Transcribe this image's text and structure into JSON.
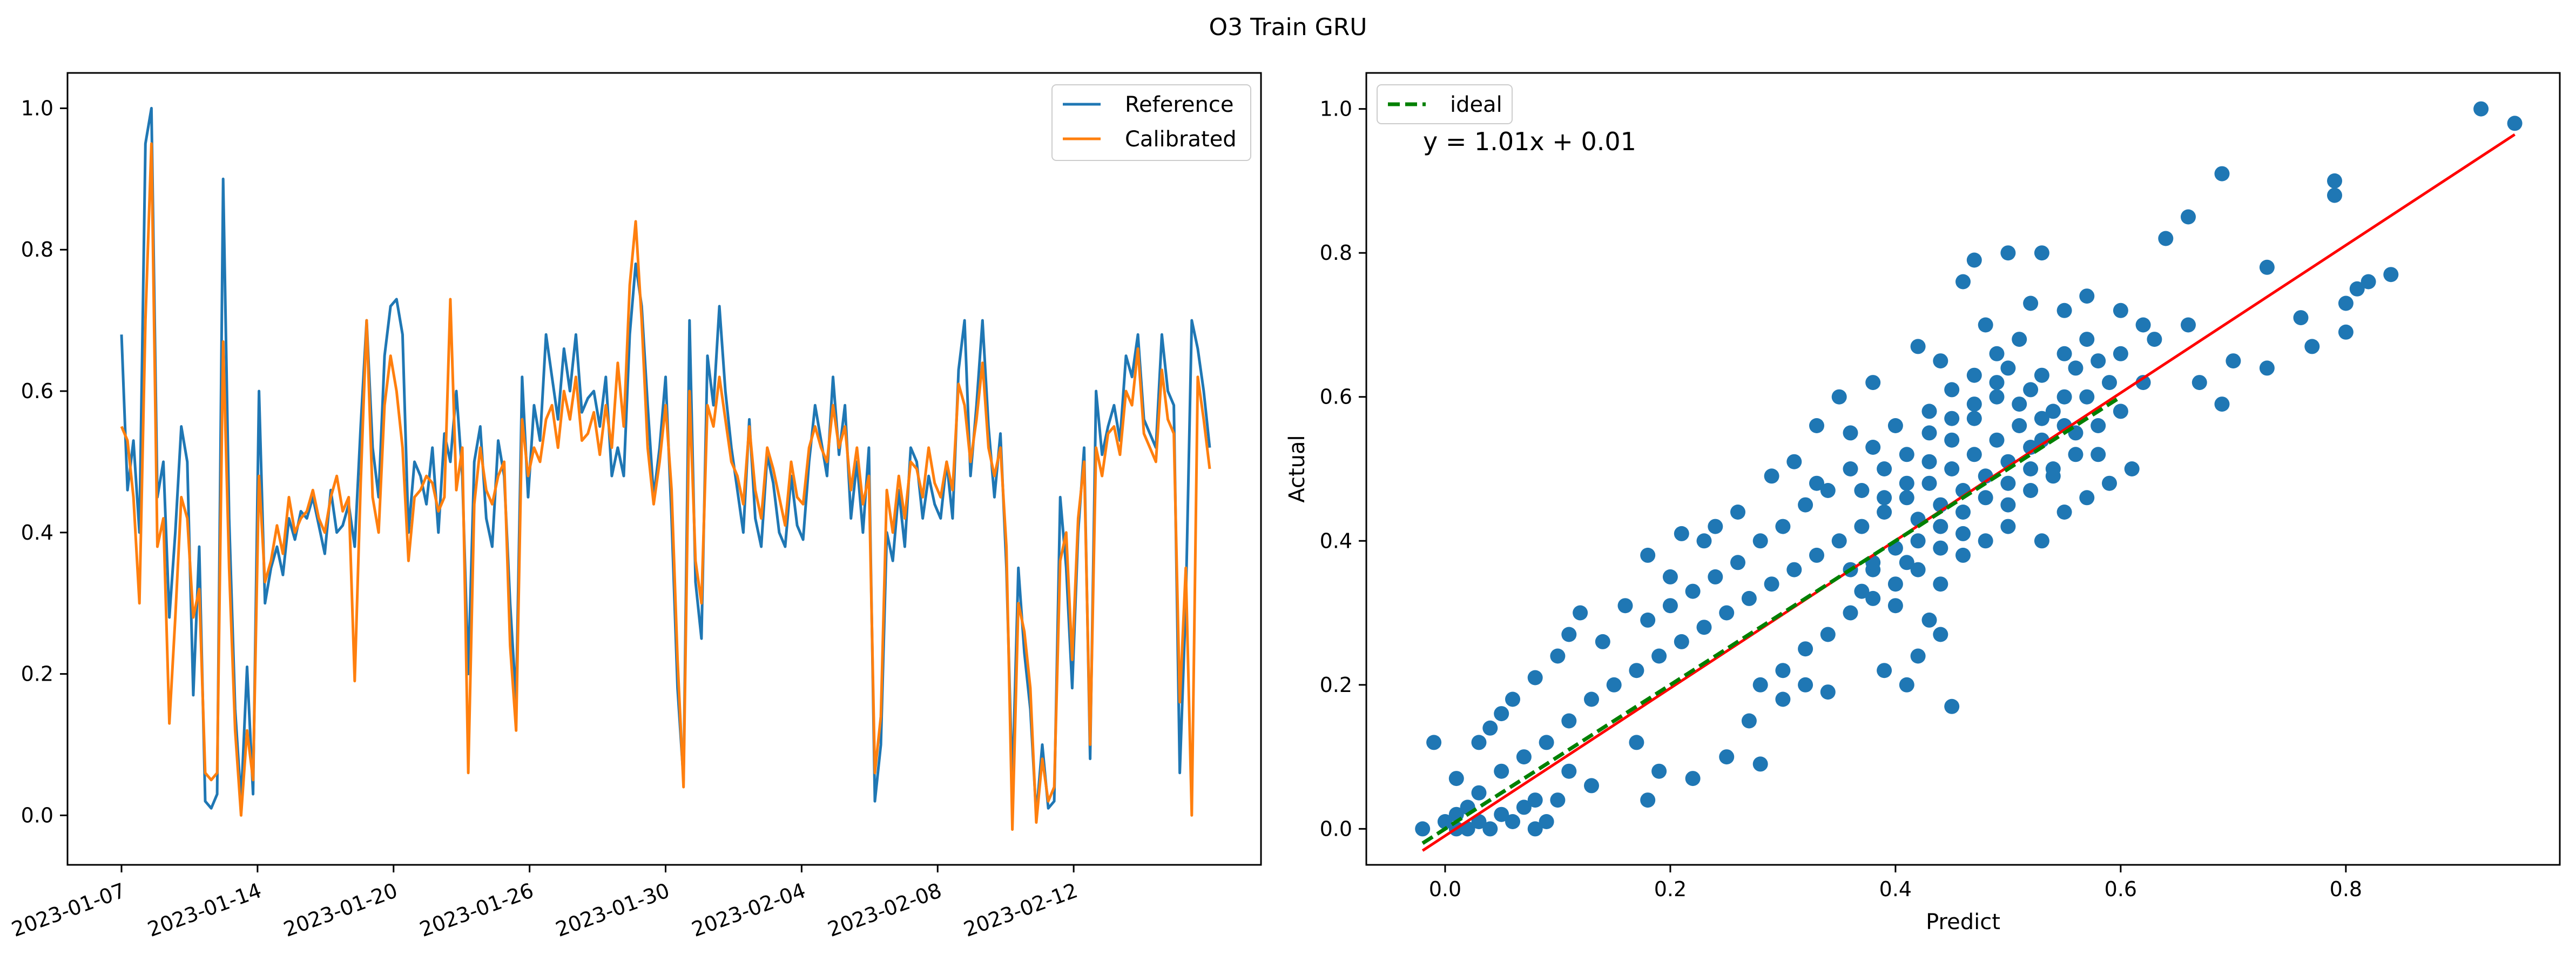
{
  "figure": {
    "title": "O3 Train GRU"
  },
  "chart_data": [
    {
      "type": "line",
      "xlabel": "",
      "ylabel": "",
      "ylim": [
        -0.07,
        1.05
      ],
      "x_tick_labels": [
        "2023-01-07",
        "2023-01-14",
        "2023-01-20",
        "2023-01-26",
        "2023-01-30",
        "2023-02-04",
        "2023-02-08",
        "2023-02-12"
      ],
      "x_tick_rotation_deg": -20,
      "y_ticks": [
        0.0,
        0.2,
        0.4,
        0.6,
        0.8,
        1.0
      ],
      "y_tick_labels": [
        "0.0",
        "0.2",
        "0.4",
        "0.6",
        "0.8",
        "1.0"
      ],
      "legend_position": "top-right",
      "grid": false,
      "colors": {
        "Reference": "#1f77b4",
        "Calibrated": "#ff7f0e"
      },
      "series": [
        {
          "name": "Reference",
          "values": [
            0.68,
            0.46,
            0.53,
            0.4,
            0.95,
            1.0,
            0.45,
            0.5,
            0.28,
            0.4,
            0.55,
            0.5,
            0.17,
            0.38,
            0.02,
            0.01,
            0.03,
            0.9,
            0.42,
            0.15,
            0.02,
            0.21,
            0.03,
            0.6,
            0.3,
            0.35,
            0.38,
            0.34,
            0.42,
            0.39,
            0.43,
            0.42,
            0.45,
            0.41,
            0.37,
            0.46,
            0.4,
            0.41,
            0.44,
            0.38,
            0.55,
            0.7,
            0.52,
            0.45,
            0.65,
            0.72,
            0.73,
            0.68,
            0.4,
            0.5,
            0.48,
            0.44,
            0.52,
            0.4,
            0.54,
            0.5,
            0.6,
            0.48,
            0.2,
            0.5,
            0.55,
            0.42,
            0.38,
            0.53,
            0.48,
            0.3,
            0.16,
            0.62,
            0.45,
            0.58,
            0.53,
            0.68,
            0.62,
            0.56,
            0.66,
            0.6,
            0.68,
            0.57,
            0.59,
            0.6,
            0.55,
            0.62,
            0.48,
            0.52,
            0.48,
            0.68,
            0.78,
            0.72,
            0.58,
            0.45,
            0.52,
            0.62,
            0.42,
            0.18,
            0.05,
            0.7,
            0.33,
            0.25,
            0.65,
            0.58,
            0.72,
            0.6,
            0.52,
            0.46,
            0.4,
            0.56,
            0.42,
            0.38,
            0.51,
            0.47,
            0.4,
            0.38,
            0.48,
            0.41,
            0.39,
            0.5,
            0.58,
            0.53,
            0.48,
            0.62,
            0.51,
            0.58,
            0.42,
            0.5,
            0.4,
            0.52,
            0.02,
            0.1,
            0.4,
            0.36,
            0.46,
            0.38,
            0.52,
            0.5,
            0.42,
            0.48,
            0.44,
            0.42,
            0.5,
            0.42,
            0.63,
            0.7,
            0.48,
            0.58,
            0.7,
            0.55,
            0.45,
            0.54,
            0.35,
            0.04,
            0.35,
            0.23,
            0.15,
            0.0,
            0.1,
            0.01,
            0.02,
            0.45,
            0.35,
            0.18,
            0.4,
            0.52,
            0.08,
            0.6,
            0.51,
            0.55,
            0.58,
            0.53,
            0.65,
            0.62,
            0.68,
            0.56,
            0.54,
            0.52,
            0.68,
            0.6,
            0.58,
            0.06,
            0.3,
            0.7,
            0.66,
            0.6,
            0.52
          ]
        },
        {
          "name": "Calibrated",
          "values": [
            0.55,
            0.53,
            0.45,
            0.3,
            0.7,
            0.95,
            0.38,
            0.42,
            0.13,
            0.28,
            0.45,
            0.42,
            0.28,
            0.32,
            0.06,
            0.05,
            0.06,
            0.67,
            0.35,
            0.12,
            0.0,
            0.12,
            0.05,
            0.48,
            0.33,
            0.36,
            0.41,
            0.37,
            0.45,
            0.4,
            0.42,
            0.43,
            0.46,
            0.42,
            0.4,
            0.45,
            0.48,
            0.43,
            0.45,
            0.19,
            0.47,
            0.7,
            0.45,
            0.4,
            0.58,
            0.65,
            0.6,
            0.52,
            0.36,
            0.45,
            0.46,
            0.48,
            0.47,
            0.43,
            0.45,
            0.73,
            0.46,
            0.52,
            0.06,
            0.44,
            0.52,
            0.46,
            0.44,
            0.48,
            0.5,
            0.24,
            0.12,
            0.56,
            0.48,
            0.52,
            0.5,
            0.56,
            0.58,
            0.52,
            0.6,
            0.56,
            0.62,
            0.53,
            0.54,
            0.57,
            0.51,
            0.58,
            0.52,
            0.64,
            0.55,
            0.75,
            0.84,
            0.7,
            0.52,
            0.44,
            0.5,
            0.58,
            0.46,
            0.22,
            0.04,
            0.6,
            0.36,
            0.3,
            0.58,
            0.55,
            0.62,
            0.56,
            0.5,
            0.48,
            0.44,
            0.55,
            0.46,
            0.42,
            0.52,
            0.49,
            0.45,
            0.41,
            0.5,
            0.45,
            0.44,
            0.52,
            0.55,
            0.52,
            0.5,
            0.58,
            0.52,
            0.55,
            0.46,
            0.52,
            0.44,
            0.48,
            0.06,
            0.14,
            0.46,
            0.4,
            0.48,
            0.42,
            0.5,
            0.49,
            0.45,
            0.52,
            0.47,
            0.45,
            0.5,
            0.46,
            0.61,
            0.58,
            0.5,
            0.56,
            0.64,
            0.52,
            0.48,
            0.52,
            0.38,
            -0.02,
            0.3,
            0.26,
            0.18,
            -0.01,
            0.08,
            0.02,
            0.04,
            0.36,
            0.4,
            0.22,
            0.42,
            0.5,
            0.1,
            0.52,
            0.48,
            0.54,
            0.55,
            0.51,
            0.6,
            0.58,
            0.66,
            0.54,
            0.52,
            0.5,
            0.63,
            0.56,
            0.54,
            0.16,
            0.35,
            0.0,
            0.62,
            0.56,
            0.49
          ]
        }
      ]
    },
    {
      "type": "scatter",
      "xlabel": "Predict",
      "ylabel": "Actual",
      "xlim": [
        -0.07,
        0.99
      ],
      "ylim": [
        -0.05,
        1.05
      ],
      "x_ticks": [
        0.0,
        0.2,
        0.4,
        0.6,
        0.8
      ],
      "x_tick_labels": [
        "0.0",
        "0.2",
        "0.4",
        "0.6",
        "0.8"
      ],
      "y_ticks": [
        0.0,
        0.2,
        0.4,
        0.6,
        0.8,
        1.0
      ],
      "y_tick_labels": [
        "0.0",
        "0.2",
        "0.4",
        "0.6",
        "0.8",
        "1.0"
      ],
      "legend_position": "top-left",
      "grid": false,
      "annotation": "y = 1.01x + 0.01",
      "colors": {
        "points": "#1f77b4",
        "fit": "#ff0000",
        "ideal": "#008000"
      },
      "fit_line": {
        "slope": 1.01,
        "intercept": 0.01,
        "x_range": [
          -0.02,
          0.95
        ]
      },
      "ideal_line": {
        "name": "ideal",
        "x_range": [
          -0.02,
          0.6
        ]
      },
      "points": [
        [
          0.92,
          1.0
        ],
        [
          0.95,
          0.98
        ],
        [
          0.69,
          0.91
        ],
        [
          0.79,
          0.9
        ],
        [
          0.79,
          0.88
        ],
        [
          0.5,
          0.8
        ],
        [
          0.47,
          0.79
        ],
        [
          0.53,
          0.8
        ],
        [
          0.66,
          0.85
        ],
        [
          0.64,
          0.82
        ],
        [
          0.84,
          0.77
        ],
        [
          0.82,
          0.76
        ],
        [
          0.81,
          0.75
        ],
        [
          0.8,
          0.73
        ],
        [
          0.76,
          0.71
        ],
        [
          0.73,
          0.78
        ],
        [
          0.8,
          0.69
        ],
        [
          0.77,
          0.67
        ],
        [
          0.7,
          0.65
        ],
        [
          0.66,
          0.7
        ],
        [
          0.63,
          0.68
        ],
        [
          0.62,
          0.62
        ],
        [
          0.67,
          0.62
        ],
        [
          0.69,
          0.59
        ],
        [
          0.73,
          0.64
        ],
        [
          0.6,
          0.72
        ],
        [
          0.57,
          0.74
        ],
        [
          0.55,
          0.72
        ],
        [
          0.52,
          0.73
        ],
        [
          0.46,
          0.76
        ],
        [
          0.48,
          0.7
        ],
        [
          0.42,
          0.67
        ],
        [
          0.44,
          0.65
        ],
        [
          0.38,
          0.62
        ],
        [
          0.35,
          0.6
        ],
        [
          0.36,
          0.55
        ],
        [
          0.33,
          0.56
        ],
        [
          0.31,
          0.51
        ],
        [
          0.29,
          0.49
        ],
        [
          0.33,
          0.48
        ],
        [
          0.26,
          0.44
        ],
        [
          0.24,
          0.42
        ],
        [
          0.23,
          0.4
        ],
        [
          0.21,
          0.41
        ],
        [
          0.18,
          0.38
        ],
        [
          0.2,
          0.35
        ],
        [
          0.16,
          0.31
        ],
        [
          0.12,
          0.3
        ],
        [
          0.11,
          0.27
        ],
        [
          0.14,
          0.26
        ],
        [
          0.1,
          0.24
        ],
        [
          0.08,
          0.21
        ],
        [
          0.06,
          0.18
        ],
        [
          0.05,
          0.16
        ],
        [
          0.04,
          0.14
        ],
        [
          0.03,
          0.12
        ],
        [
          -0.01,
          0.12
        ],
        [
          0.01,
          0.07
        ],
        [
          0.1,
          0.04
        ],
        [
          0.08,
          0.04
        ],
        [
          0.28,
          0.09
        ],
        [
          0.22,
          0.07
        ],
        [
          0.18,
          0.04
        ],
        [
          0.19,
          0.08
        ],
        [
          0.17,
          0.12
        ],
        [
          0.25,
          0.1
        ],
        [
          0.27,
          0.15
        ],
        [
          0.3,
          0.18
        ],
        [
          0.32,
          0.2
        ],
        [
          0.34,
          0.19
        ],
        [
          0.39,
          0.22
        ],
        [
          0.41,
          0.2
        ],
        [
          0.42,
          0.24
        ],
        [
          0.44,
          0.27
        ],
        [
          0.45,
          0.17
        ],
        [
          0.43,
          0.29
        ],
        [
          0.4,
          0.31
        ],
        [
          0.37,
          0.33
        ],
        [
          0.38,
          0.36
        ],
        [
          0.41,
          0.37
        ],
        [
          0.44,
          0.34
        ],
        [
          0.46,
          0.38
        ],
        [
          0.48,
          0.4
        ],
        [
          0.5,
          0.42
        ],
        [
          0.53,
          0.4
        ],
        [
          0.55,
          0.44
        ],
        [
          0.57,
          0.46
        ],
        [
          0.59,
          0.48
        ],
        [
          0.61,
          0.5
        ],
        [
          0.58,
          0.52
        ],
        [
          0.56,
          0.55
        ],
        [
          0.54,
          0.58
        ],
        [
          0.52,
          0.61
        ],
        [
          0.5,
          0.64
        ],
        [
          0.49,
          0.6
        ],
        [
          0.47,
          0.57
        ],
        [
          0.45,
          0.54
        ],
        [
          0.43,
          0.51
        ],
        [
          0.41,
          0.48
        ],
        [
          0.39,
          0.46
        ],
        [
          0.42,
          0.43
        ],
        [
          0.44,
          0.45
        ],
        [
          0.46,
          0.47
        ],
        [
          0.48,
          0.49
        ],
        [
          0.5,
          0.51
        ],
        [
          0.52,
          0.53
        ],
        [
          0.54,
          0.5
        ],
        [
          0.56,
          0.52
        ],
        [
          0.58,
          0.56
        ],
        [
          0.6,
          0.58
        ],
        [
          0.51,
          0.56
        ],
        [
          0.49,
          0.54
        ],
        [
          0.47,
          0.52
        ],
        [
          0.45,
          0.5
        ],
        [
          0.43,
          0.48
        ],
        [
          0.41,
          0.46
        ],
        [
          0.39,
          0.44
        ],
        [
          0.37,
          0.42
        ],
        [
          0.35,
          0.4
        ],
        [
          0.33,
          0.38
        ],
        [
          0.31,
          0.36
        ],
        [
          0.29,
          0.34
        ],
        [
          0.27,
          0.32
        ],
        [
          0.25,
          0.3
        ],
        [
          0.23,
          0.28
        ],
        [
          0.21,
          0.26
        ],
        [
          0.19,
          0.24
        ],
        [
          0.17,
          0.22
        ],
        [
          0.15,
          0.2
        ],
        [
          0.13,
          0.18
        ],
        [
          0.11,
          0.15
        ],
        [
          0.09,
          0.12
        ],
        [
          0.07,
          0.1
        ],
        [
          0.05,
          0.08
        ],
        [
          0.03,
          0.05
        ],
        [
          0.02,
          0.03
        ],
        [
          0.01,
          0.02
        ],
        [
          0.0,
          0.01
        ],
        [
          -0.02,
          0.0
        ],
        [
          0.04,
          0.0
        ],
        [
          0.06,
          0.01
        ],
        [
          0.08,
          0.0
        ],
        [
          0.05,
          0.02
        ],
        [
          0.07,
          0.03
        ],
        [
          0.02,
          0.0
        ],
        [
          0.03,
          0.01
        ],
        [
          0.01,
          0.0
        ],
        [
          0.09,
          0.01
        ],
        [
          0.11,
          0.08
        ],
        [
          0.13,
          0.06
        ],
        [
          0.53,
          0.63
        ],
        [
          0.55,
          0.66
        ],
        [
          0.57,
          0.68
        ],
        [
          0.51,
          0.68
        ],
        [
          0.49,
          0.66
        ],
        [
          0.47,
          0.63
        ],
        [
          0.45,
          0.61
        ],
        [
          0.43,
          0.58
        ],
        [
          0.4,
          0.56
        ],
        [
          0.38,
          0.53
        ],
        [
          0.36,
          0.5
        ],
        [
          0.34,
          0.47
        ],
        [
          0.32,
          0.45
        ],
        [
          0.3,
          0.42
        ],
        [
          0.28,
          0.4
        ],
        [
          0.26,
          0.37
        ],
        [
          0.24,
          0.35
        ],
        [
          0.22,
          0.33
        ],
        [
          0.2,
          0.31
        ],
        [
          0.18,
          0.29
        ],
        [
          0.48,
          0.46
        ],
        [
          0.5,
          0.48
        ],
        [
          0.52,
          0.47
        ],
        [
          0.54,
          0.49
        ],
        [
          0.46,
          0.44
        ],
        [
          0.44,
          0.42
        ],
        [
          0.42,
          0.4
        ],
        [
          0.4,
          0.39
        ],
        [
          0.38,
          0.37
        ],
        [
          0.36,
          0.36
        ],
        [
          0.55,
          0.6
        ],
        [
          0.53,
          0.57
        ],
        [
          0.51,
          0.59
        ],
        [
          0.49,
          0.62
        ],
        [
          0.47,
          0.59
        ],
        [
          0.45,
          0.57
        ],
        [
          0.43,
          0.55
        ],
        [
          0.41,
          0.52
        ],
        [
          0.39,
          0.5
        ],
        [
          0.37,
          0.47
        ],
        [
          0.56,
          0.64
        ],
        [
          0.58,
          0.65
        ],
        [
          0.6,
          0.66
        ],
        [
          0.62,
          0.7
        ],
        [
          0.59,
          0.62
        ],
        [
          0.57,
          0.6
        ],
        [
          0.55,
          0.56
        ],
        [
          0.53,
          0.54
        ],
        [
          0.52,
          0.5
        ],
        [
          0.5,
          0.45
        ],
        [
          0.46,
          0.41
        ],
        [
          0.44,
          0.39
        ],
        [
          0.42,
          0.36
        ],
        [
          0.4,
          0.34
        ],
        [
          0.38,
          0.32
        ],
        [
          0.36,
          0.3
        ],
        [
          0.34,
          0.27
        ],
        [
          0.32,
          0.25
        ],
        [
          0.3,
          0.22
        ],
        [
          0.28,
          0.2
        ]
      ]
    }
  ]
}
